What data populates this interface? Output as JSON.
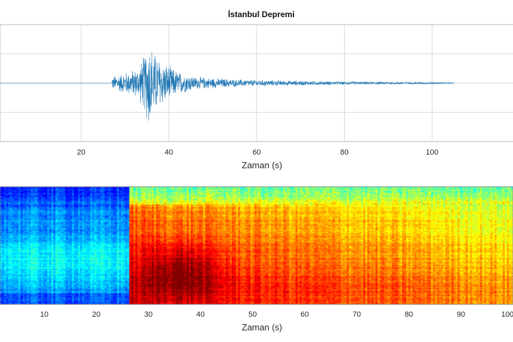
{
  "chart_data": [
    {
      "type": "line",
      "title": "İstanbul Depremi",
      "xlabel": "Zaman (s)",
      "ylabel": "",
      "xlim": [
        1.5,
        120
      ],
      "ylim": [
        -1,
        1
      ],
      "xticks": [
        20,
        40,
        60,
        80,
        100
      ],
      "grid": true,
      "line_color": "#1f77b4",
      "series": [
        {
          "start": 27,
          "end": 105,
          "envelope": [
            {
              "t": 1.5,
              "a": 0.01
            },
            {
              "t": 26.5,
              "a": 0.01
            },
            {
              "t": 27,
              "a": 0.12
            },
            {
              "t": 30,
              "a": 0.2
            },
            {
              "t": 33,
              "a": 0.28
            },
            {
              "t": 34.5,
              "a": 0.55
            },
            {
              "t": 35.5,
              "a": 0.85
            },
            {
              "t": 36.5,
              "a": 0.6
            },
            {
              "t": 39,
              "a": 0.38
            },
            {
              "t": 42,
              "a": 0.22
            },
            {
              "t": 46,
              "a": 0.12
            },
            {
              "t": 55,
              "a": 0.07
            },
            {
              "t": 65,
              "a": 0.05
            },
            {
              "t": 80,
              "a": 0.03
            },
            {
              "t": 100,
              "a": 0.02
            },
            {
              "t": 105,
              "a": 0.01
            }
          ]
        }
      ]
    },
    {
      "type": "heatmap",
      "title": "",
      "xlabel": "Zaman (s)",
      "ylabel": "",
      "xlim": [
        1.5,
        100
      ],
      "xticks": [
        10,
        20,
        30,
        40,
        50,
        60,
        70,
        80,
        90,
        100
      ],
      "colormap": "jet",
      "onset": 26,
      "peak_time": 36
    }
  ]
}
